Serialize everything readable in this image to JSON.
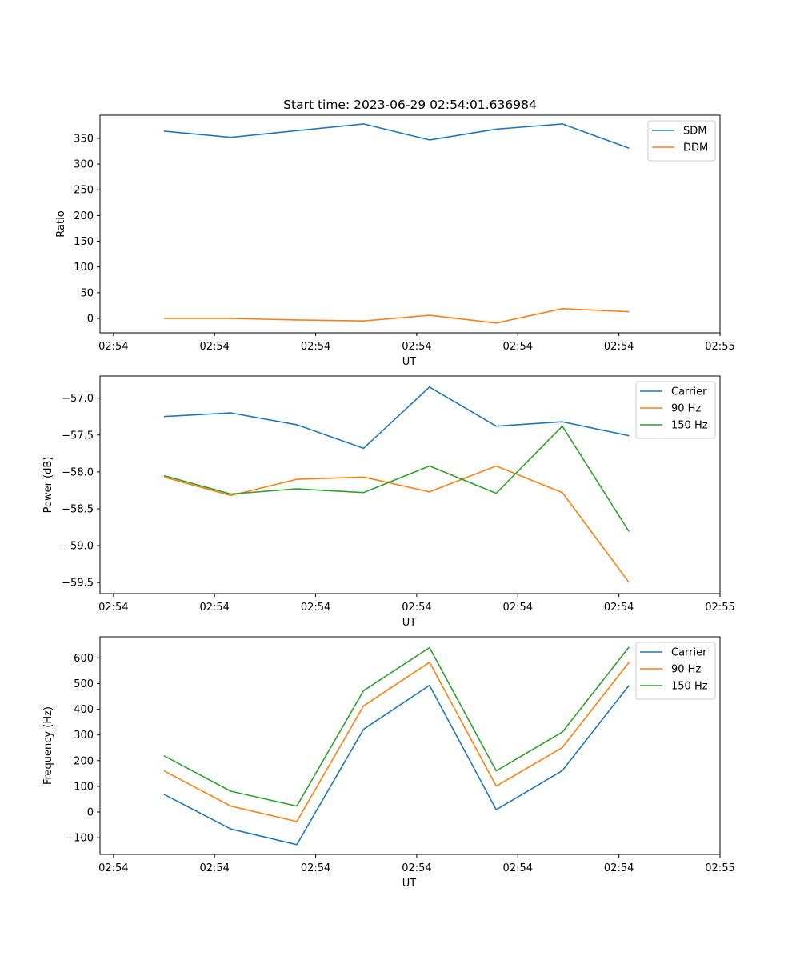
{
  "chart_data": [
    {
      "type": "line",
      "title": "Start time: 2023-06-29 02:54:01.636984",
      "xlabel": "UT",
      "ylabel": "Ratio",
      "ylim": [
        -28,
        395
      ],
      "xlim": [
        -0.2,
        9.0
      ],
      "x_tick_labels": [
        "02:54",
        "02:54",
        "02:54",
        "02:54",
        "02:54",
        "02:54",
        "02:55"
      ],
      "y_ticks": [
        0,
        50,
        100,
        150,
        200,
        250,
        300,
        350
      ],
      "y_tick_labels": [
        "0",
        "50",
        "100",
        "150",
        "200",
        "250",
        "300",
        "350"
      ],
      "legend_position": "top-right",
      "x": [
        0.75,
        1.74,
        2.72,
        3.71,
        4.69,
        5.68,
        6.66,
        7.65
      ],
      "series": [
        {
          "name": "SDM",
          "color": "#1f77b4",
          "values": [
            364,
            352,
            365,
            378,
            347,
            368,
            378,
            331
          ]
        },
        {
          "name": "DDM",
          "color": "#ff7f0e",
          "values": [
            0,
            0,
            -3,
            -5,
            6,
            -9,
            19,
            13
          ]
        }
      ]
    },
    {
      "type": "line",
      "title": "",
      "xlabel": "UT",
      "ylabel": "Power (dB)",
      "ylim": [
        -59.65,
        -56.7
      ],
      "xlim": [
        -0.2,
        9.0
      ],
      "x_tick_labels": [
        "02:54",
        "02:54",
        "02:54",
        "02:54",
        "02:54",
        "02:54",
        "02:55"
      ],
      "y_ticks": [
        -59.5,
        -59.0,
        -58.5,
        -58.0,
        -57.5,
        -57.0
      ],
      "y_tick_labels": [
        "−59.5",
        "−59.0",
        "−58.5",
        "−58.0",
        "−57.5",
        "−57.0"
      ],
      "legend_position": "top-right",
      "x": [
        0.75,
        1.74,
        2.72,
        3.71,
        4.69,
        5.68,
        6.66,
        7.65
      ],
      "series": [
        {
          "name": "Carrier",
          "color": "#1f77b4",
          "values": [
            -57.25,
            -57.2,
            -57.36,
            -57.68,
            -56.85,
            -57.38,
            -57.32,
            -57.51
          ]
        },
        {
          "name": "90 Hz",
          "color": "#ff7f0e",
          "values": [
            -58.07,
            -58.32,
            -58.1,
            -58.07,
            -58.27,
            -57.92,
            -58.28,
            -59.5
          ]
        },
        {
          "name": "150 Hz",
          "color": "#2ca02c",
          "values": [
            -58.05,
            -58.3,
            -58.23,
            -58.28,
            -57.92,
            -58.29,
            -57.38,
            -58.81
          ]
        }
      ]
    },
    {
      "type": "line",
      "title": "",
      "xlabel": "UT",
      "ylabel": "Frequency (Hz)",
      "ylim": [
        -165,
        682
      ],
      "xlim": [
        -0.2,
        9.0
      ],
      "x_tick_labels": [
        "02:54",
        "02:54",
        "02:54",
        "02:54",
        "02:54",
        "02:54",
        "02:55"
      ],
      "y_ticks": [
        -100,
        0,
        100,
        200,
        300,
        400,
        500,
        600
      ],
      "y_tick_labels": [
        "−100",
        "0",
        "100",
        "200",
        "300",
        "400",
        "500",
        "600"
      ],
      "legend_position": "top-right",
      "x": [
        0.75,
        1.74,
        2.72,
        3.71,
        4.69,
        5.68,
        6.66,
        7.65
      ],
      "series": [
        {
          "name": "Carrier",
          "color": "#1f77b4",
          "values": [
            69,
            -66,
            -127,
            322,
            493,
            9,
            161,
            493
          ]
        },
        {
          "name": "90 Hz",
          "color": "#ff7f0e",
          "values": [
            160,
            23,
            -37,
            413,
            583,
            101,
            251,
            583
          ]
        },
        {
          "name": "150 Hz",
          "color": "#2ca02c",
          "values": [
            219,
            81,
            23,
            472,
            640,
            160,
            311,
            642
          ]
        }
      ]
    }
  ]
}
